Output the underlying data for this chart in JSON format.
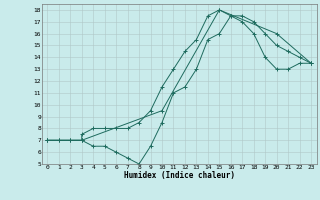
{
  "xlabel": "Humidex (Indice chaleur)",
  "xlim": [
    -0.5,
    23.5
  ],
  "ylim": [
    5,
    18.5
  ],
  "xticks": [
    0,
    1,
    2,
    3,
    4,
    5,
    6,
    7,
    8,
    9,
    10,
    11,
    12,
    13,
    14,
    15,
    16,
    17,
    18,
    19,
    20,
    21,
    22,
    23
  ],
  "yticks": [
    5,
    6,
    7,
    8,
    9,
    10,
    11,
    12,
    13,
    14,
    15,
    16,
    17,
    18
  ],
  "bg_color": "#c9ebeb",
  "grid_color": "#b0c8c8",
  "line_color": "#1e6b5e",
  "line1_x": [
    0,
    1,
    2,
    3,
    4,
    5,
    6,
    7,
    8,
    9,
    10,
    11,
    12,
    13,
    14,
    15,
    16,
    17,
    18,
    19,
    20,
    21,
    22,
    23
  ],
  "line1_y": [
    7,
    7,
    7,
    7,
    6.5,
    6.5,
    6,
    5.5,
    5,
    6.5,
    8.5,
    11,
    11.5,
    13,
    15.5,
    16,
    17.5,
    17.5,
    17,
    16,
    15,
    14.5,
    14,
    13.5
  ],
  "line2_x": [
    0,
    1,
    2,
    3,
    3,
    4,
    5,
    6,
    7,
    8,
    9,
    10,
    11,
    12,
    13,
    14,
    15,
    16,
    17,
    18,
    19,
    20,
    21,
    22,
    23
  ],
  "line2_y": [
    7,
    7,
    7,
    7,
    7.5,
    8,
    8,
    8,
    8,
    8.5,
    9.5,
    11.5,
    13,
    14.5,
    15.5,
    17.5,
    18,
    17.5,
    17,
    16,
    14,
    13,
    13,
    13.5,
    13.5
  ],
  "line3_x": [
    0,
    3,
    10,
    15,
    20,
    23
  ],
  "line3_y": [
    7,
    7,
    9.5,
    18,
    16,
    13.5
  ]
}
